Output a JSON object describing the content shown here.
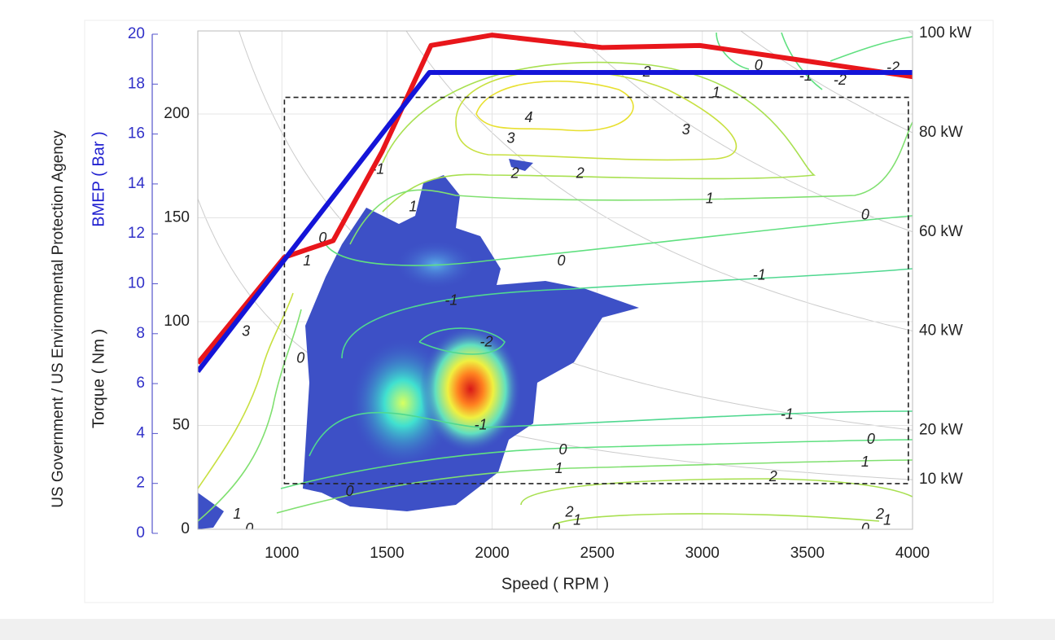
{
  "chart_data": {
    "type": "line",
    "credit": "US Government / US Environmental Protection Agency",
    "xlabel": "Speed ( RPM )",
    "ylabel": "Torque ( Nm )",
    "y2label": "BMEP ( Bar )",
    "xlim": [
      600,
      4000
    ],
    "xticks": [
      1000,
      1500,
      2000,
      2500,
      3000,
      3500,
      4000
    ],
    "ylim": [
      0,
      240
    ],
    "yticks": [
      0,
      50,
      100,
      150,
      200
    ],
    "y2lim": [
      0,
      20
    ],
    "y2ticks": [
      0,
      2,
      4,
      6,
      8,
      10,
      12,
      14,
      16,
      18,
      20
    ],
    "power_ticks": [
      {
        "value": 100,
        "label": "100 kW"
      },
      {
        "value": 80,
        "label": "80 kW"
      },
      {
        "value": 60,
        "label": "60 kW"
      },
      {
        "value": 40,
        "label": "40 kW"
      },
      {
        "value": 20,
        "label": "20 kW"
      },
      {
        "value": 10,
        "label": "10 kW"
      }
    ],
    "series": [
      {
        "color": "#e8161b",
        "x": [
          600,
          1012,
          1244,
          1477,
          1709,
          2000,
          2523,
          2988,
          3531,
          4000
        ],
        "y": [
          80,
          131,
          139,
          182,
          233,
          238,
          232,
          233,
          225,
          218
        ]
      },
      {
        "color": "#1414d8",
        "x": [
          600,
          1702,
          4000
        ],
        "y": [
          76,
          220,
          220
        ]
      }
    ],
    "boxes": [
      {
        "x": [
          1012,
          3980
        ],
        "y": [
          22,
          208
        ]
      }
    ],
    "contour_labels": [
      {
        "level": 2,
        "x": 2736,
        "y": 220
      },
      {
        "level": 1,
        "x": 3066,
        "y": 210
      },
      {
        "level": 0,
        "x": 3267,
        "y": 223
      },
      {
        "level": -1,
        "x": 3492,
        "y": 218
      },
      {
        "level": -2,
        "x": 3655,
        "y": 216
      },
      {
        "level": -2,
        "x": 3907,
        "y": 222
      },
      {
        "level": 4,
        "x": 2174,
        "y": 198
      },
      {
        "level": 3,
        "x": 2089,
        "y": 188
      },
      {
        "level": 3,
        "x": 2922,
        "y": 192
      },
      {
        "level": 2,
        "x": 2109,
        "y": 171
      },
      {
        "level": 2,
        "x": 2419,
        "y": 171
      },
      {
        "level": -1,
        "x": 1457,
        "y": 173
      },
      {
        "level": 1,
        "x": 1624,
        "y": 155
      },
      {
        "level": 1,
        "x": 3035,
        "y": 159
      },
      {
        "level": 0,
        "x": 3775,
        "y": 151
      },
      {
        "level": 0,
        "x": 1194,
        "y": 140
      },
      {
        "level": 1,
        "x": 1120,
        "y": 129
      },
      {
        "level": 0,
        "x": 2329,
        "y": 129
      },
      {
        "level": -1,
        "x": 3271,
        "y": 122
      },
      {
        "level": -1,
        "x": 1806,
        "y": 110
      },
      {
        "level": 3,
        "x": 829,
        "y": 95
      },
      {
        "level": -2,
        "x": 1973,
        "y": 90
      },
      {
        "level": 0,
        "x": 1089,
        "y": 82
      },
      {
        "level": -1,
        "x": 3403,
        "y": 55
      },
      {
        "level": -1,
        "x": 1946,
        "y": 50
      },
      {
        "level": 0,
        "x": 2337,
        "y": 38
      },
      {
        "level": 0,
        "x": 3802,
        "y": 43
      },
      {
        "level": 1,
        "x": 2318,
        "y": 29
      },
      {
        "level": 1,
        "x": 3775,
        "y": 32
      },
      {
        "level": 2,
        "x": 3337,
        "y": 25
      },
      {
        "level": 0,
        "x": 1322,
        "y": 18
      },
      {
        "level": 2,
        "x": 2368,
        "y": 8
      },
      {
        "level": 1,
        "x": 787,
        "y": 7
      },
      {
        "level": 0,
        "x": 845,
        "y": 0
      },
      {
        "level": 0,
        "x": 2304,
        "y": 0
      },
      {
        "level": 1,
        "x": 2405,
        "y": 4
      },
      {
        "level": 0,
        "x": 3775,
        "y": 0
      },
      {
        "level": 2,
        "x": 3845,
        "y": 7
      },
      {
        "level": 1,
        "x": 3880,
        "y": 4
      }
    ]
  }
}
